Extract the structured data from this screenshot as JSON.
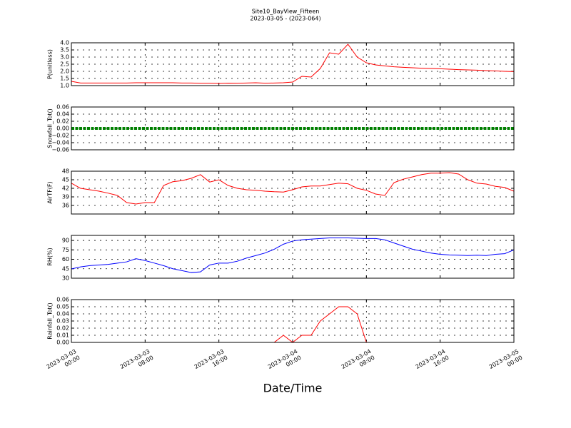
{
  "chart_data": [
    {
      "type": "line",
      "title": "Site10_BayView_Fifteen",
      "subtitle": "2023-03-05 - (2023-064)",
      "ylabel": "P(unitless)",
      "color": "#ff0000",
      "grid": true,
      "x": [
        "2023-03-03 00:00",
        "2023-03-03 01:00",
        "2023-03-03 02:00",
        "2023-03-03 03:00",
        "2023-03-03 04:00",
        "2023-03-03 05:00",
        "2023-03-03 06:00",
        "2023-03-03 07:00",
        "2023-03-03 08:00",
        "2023-03-03 09:00",
        "2023-03-03 10:00",
        "2023-03-03 11:00",
        "2023-03-03 12:00",
        "2023-03-03 13:00",
        "2023-03-03 14:00",
        "2023-03-03 15:00",
        "2023-03-03 16:00",
        "2023-03-03 17:00",
        "2023-03-03 18:00",
        "2023-03-03 19:00",
        "2023-03-03 20:00",
        "2023-03-03 21:00",
        "2023-03-03 22:00",
        "2023-03-03 23:00",
        "2023-03-04 00:00",
        "2023-03-04 01:00",
        "2023-03-04 02:00",
        "2023-03-04 03:00",
        "2023-03-04 04:00",
        "2023-03-04 05:00",
        "2023-03-04 06:00",
        "2023-03-04 07:00",
        "2023-03-04 08:00",
        "2023-03-04 09:00",
        "2023-03-04 10:00",
        "2023-03-04 11:00",
        "2023-03-04 12:00",
        "2023-03-04 13:00",
        "2023-03-04 14:00",
        "2023-03-04 15:00",
        "2023-03-04 16:00",
        "2023-03-04 17:00",
        "2023-03-04 18:00",
        "2023-03-04 19:00",
        "2023-03-04 20:00",
        "2023-03-04 21:00",
        "2023-03-04 22:00",
        "2023-03-04 23:00",
        "2023-03-05 00:00"
      ],
      "values": [
        1.3,
        1.18,
        1.18,
        1.18,
        1.18,
        1.18,
        1.18,
        1.2,
        1.2,
        1.2,
        1.2,
        1.2,
        1.18,
        1.18,
        1.16,
        1.16,
        1.15,
        1.17,
        1.16,
        1.18,
        1.2,
        1.17,
        1.18,
        1.2,
        1.25,
        1.65,
        1.6,
        2.2,
        3.3,
        3.2,
        3.9,
        3.0,
        2.6,
        2.45,
        2.38,
        2.32,
        2.28,
        2.25,
        2.22,
        2.2,
        2.18,
        2.15,
        2.12,
        2.1,
        2.08,
        2.05,
        2.03,
        2.0,
        1.98
      ],
      "xlim": [
        "2023-03-03 00:00",
        "2023-03-05 00:00"
      ],
      "xticks": [
        "2023-03-03 00:00",
        "2023-03-03 08:00",
        "2023-03-03 16:00",
        "2023-03-04 00:00",
        "2023-03-04 08:00",
        "2023-03-04 16:00",
        "2023-03-05 00:00"
      ],
      "ylim": [
        1,
        4
      ],
      "yticks": [
        {
          "value": 1,
          "label": "1.0"
        },
        {
          "value": 1.5,
          "label": "1.5"
        },
        {
          "value": 2,
          "label": "2.0"
        },
        {
          "value": 2.5,
          "label": "2.5"
        },
        {
          "value": 3,
          "label": "3.0"
        },
        {
          "value": 3.5,
          "label": "3.5"
        },
        {
          "value": 4,
          "label": "4.0"
        }
      ]
    },
    {
      "type": "line",
      "ylabel": "Snowfall_Tot()",
      "color": "#008000",
      "grid": true,
      "x": [
        "2023-03-03 00:00",
        "2023-03-03 01:00",
        "2023-03-03 02:00",
        "2023-03-03 03:00",
        "2023-03-03 04:00",
        "2023-03-03 05:00",
        "2023-03-03 06:00",
        "2023-03-03 07:00",
        "2023-03-03 08:00",
        "2023-03-03 09:00",
        "2023-03-03 10:00",
        "2023-03-03 11:00",
        "2023-03-03 12:00",
        "2023-03-03 13:00",
        "2023-03-03 14:00",
        "2023-03-03 15:00",
        "2023-03-03 16:00",
        "2023-03-03 17:00",
        "2023-03-03 18:00",
        "2023-03-03 19:00",
        "2023-03-03 20:00",
        "2023-03-03 21:00",
        "2023-03-03 22:00",
        "2023-03-03 23:00",
        "2023-03-04 00:00",
        "2023-03-04 01:00",
        "2023-03-04 02:00",
        "2023-03-04 03:00",
        "2023-03-04 04:00",
        "2023-03-04 05:00",
        "2023-03-04 06:00",
        "2023-03-04 07:00",
        "2023-03-04 08:00",
        "2023-03-04 09:00",
        "2023-03-04 10:00",
        "2023-03-04 11:00",
        "2023-03-04 12:00",
        "2023-03-04 13:00",
        "2023-03-04 14:00",
        "2023-03-04 15:00",
        "2023-03-04 16:00",
        "2023-03-04 17:00",
        "2023-03-04 18:00",
        "2023-03-04 19:00",
        "2023-03-04 20:00",
        "2023-03-04 21:00",
        "2023-03-04 22:00",
        "2023-03-04 23:00",
        "2023-03-05 00:00"
      ],
      "values": [
        0,
        0,
        0,
        0,
        0,
        0,
        0,
        0,
        0,
        0,
        0,
        0,
        0,
        0,
        0,
        0,
        0,
        0,
        0,
        0,
        0,
        0,
        0,
        0,
        0,
        0,
        0,
        0,
        0,
        0,
        0,
        0,
        0,
        0,
        0,
        0,
        0,
        0,
        0,
        0,
        0,
        0,
        0,
        0,
        0,
        0,
        0,
        0,
        0
      ],
      "xlim": [
        "2023-03-03 00:00",
        "2023-03-05 00:00"
      ],
      "xticks": [
        "2023-03-03 00:00",
        "2023-03-03 08:00",
        "2023-03-03 16:00",
        "2023-03-04 00:00",
        "2023-03-04 08:00",
        "2023-03-04 16:00",
        "2023-03-05 00:00"
      ],
      "ylim": [
        -0.06,
        0.06
      ],
      "yticks": [
        {
          "value": -0.06,
          "label": "−0.06"
        },
        {
          "value": -0.04,
          "label": "−0.04"
        },
        {
          "value": -0.02,
          "label": "−0.02"
        },
        {
          "value": 0,
          "label": "0.00"
        },
        {
          "value": 0.02,
          "label": "0.02"
        },
        {
          "value": 0.04,
          "label": "0.04"
        },
        {
          "value": 0.06,
          "label": "0.06"
        }
      ]
    },
    {
      "type": "line",
      "ylabel": "AirTF(F)",
      "color": "#ff0000",
      "grid": true,
      "x": [
        "2023-03-03 00:00",
        "2023-03-03 01:00",
        "2023-03-03 02:00",
        "2023-03-03 03:00",
        "2023-03-03 04:00",
        "2023-03-03 05:00",
        "2023-03-03 06:00",
        "2023-03-03 07:00",
        "2023-03-03 08:00",
        "2023-03-03 09:00",
        "2023-03-03 10:00",
        "2023-03-03 11:00",
        "2023-03-03 12:00",
        "2023-03-03 13:00",
        "2023-03-03 14:00",
        "2023-03-03 15:00",
        "2023-03-03 16:00",
        "2023-03-03 17:00",
        "2023-03-03 18:00",
        "2023-03-03 19:00",
        "2023-03-03 20:00",
        "2023-03-03 21:00",
        "2023-03-03 22:00",
        "2023-03-03 23:00",
        "2023-03-04 00:00",
        "2023-03-04 01:00",
        "2023-03-04 02:00",
        "2023-03-04 03:00",
        "2023-03-04 04:00",
        "2023-03-04 05:00",
        "2023-03-04 06:00",
        "2023-03-04 07:00",
        "2023-03-04 08:00",
        "2023-03-04 09:00",
        "2023-03-04 10:00",
        "2023-03-04 11:00",
        "2023-03-04 12:00",
        "2023-03-04 13:00",
        "2023-03-04 14:00",
        "2023-03-04 15:00",
        "2023-03-04 16:00",
        "2023-03-04 17:00",
        "2023-03-04 18:00",
        "2023-03-04 19:00",
        "2023-03-04 20:00",
        "2023-03-04 21:00",
        "2023-03-04 22:00",
        "2023-03-04 23:00",
        "2023-03-05 00:00"
      ],
      "values": [
        43.8,
        42,
        41.5,
        41,
        40.3,
        39.5,
        37,
        36.5,
        37,
        37,
        43,
        44.3,
        44.7,
        45.5,
        46.8,
        44.2,
        45,
        43,
        42,
        41.5,
        41.3,
        41,
        40.8,
        40.7,
        41.5,
        42.5,
        42.8,
        42.8,
        43.3,
        43.8,
        43.6,
        42,
        41.3,
        40,
        39.5,
        44,
        45.2,
        46,
        46.8,
        47.3,
        47.3,
        47.5,
        47,
        45,
        43.8,
        43.5,
        42.7,
        42.3,
        41
      ],
      "xlim": [
        "2023-03-03 00:00",
        "2023-03-05 00:00"
      ],
      "xticks": [
        "2023-03-03 00:00",
        "2023-03-03 08:00",
        "2023-03-03 16:00",
        "2023-03-04 00:00",
        "2023-03-04 08:00",
        "2023-03-04 16:00",
        "2023-03-05 00:00"
      ],
      "ylim": [
        33,
        48
      ],
      "yticks": [
        36,
        39,
        42,
        45,
        48
      ]
    },
    {
      "type": "line",
      "ylabel": "RH(%)",
      "color": "#0000ff",
      "grid": true,
      "x": [
        "2023-03-03 00:00",
        "2023-03-03 01:00",
        "2023-03-03 02:00",
        "2023-03-03 03:00",
        "2023-03-03 04:00",
        "2023-03-03 05:00",
        "2023-03-03 06:00",
        "2023-03-03 07:00",
        "2023-03-03 08:00",
        "2023-03-03 09:00",
        "2023-03-03 10:00",
        "2023-03-03 11:00",
        "2023-03-03 12:00",
        "2023-03-03 13:00",
        "2023-03-03 14:00",
        "2023-03-03 15:00",
        "2023-03-03 16:00",
        "2023-03-03 17:00",
        "2023-03-03 18:00",
        "2023-03-03 19:00",
        "2023-03-03 20:00",
        "2023-03-03 21:00",
        "2023-03-03 22:00",
        "2023-03-03 23:00",
        "2023-03-04 00:00",
        "2023-03-04 01:00",
        "2023-03-04 02:00",
        "2023-03-04 03:00",
        "2023-03-04 04:00",
        "2023-03-04 05:00",
        "2023-03-04 06:00",
        "2023-03-04 07:00",
        "2023-03-04 08:00",
        "2023-03-04 09:00",
        "2023-03-04 10:00",
        "2023-03-04 11:00",
        "2023-03-04 12:00",
        "2023-03-04 13:00",
        "2023-03-04 14:00",
        "2023-03-04 15:00",
        "2023-03-04 16:00",
        "2023-03-04 17:00",
        "2023-03-04 18:00",
        "2023-03-04 19:00",
        "2023-03-04 20:00",
        "2023-03-04 21:00",
        "2023-03-04 22:00",
        "2023-03-04 23:00",
        "2023-03-05 00:00"
      ],
      "values": [
        44.7,
        48,
        50,
        51,
        52,
        54,
        56,
        61,
        58,
        54,
        50,
        45,
        42,
        39,
        40,
        51,
        54,
        54,
        57,
        62,
        66,
        70,
        76,
        84,
        89,
        91,
        92,
        93,
        94,
        94,
        94,
        93.5,
        93,
        93,
        91,
        86,
        81,
        76,
        73,
        70,
        68,
        67,
        66.5,
        66,
        66.5,
        66,
        68,
        69,
        75
      ],
      "xlim": [
        "2023-03-03 00:00",
        "2023-03-05 00:00"
      ],
      "xticks": [
        "2023-03-03 00:00",
        "2023-03-03 08:00",
        "2023-03-03 16:00",
        "2023-03-04 00:00",
        "2023-03-04 08:00",
        "2023-03-04 16:00",
        "2023-03-05 00:00"
      ],
      "ylim": [
        30,
        98
      ],
      "yticks": [
        30,
        45,
        60,
        75,
        90
      ]
    },
    {
      "type": "line",
      "ylabel": "Rainfall_Tot()",
      "xlabel": "Date/Time",
      "color": "#ff0000",
      "grid": true,
      "x": [
        "2023-03-03 00:00",
        "2023-03-03 01:00",
        "2023-03-03 02:00",
        "2023-03-03 03:00",
        "2023-03-03 04:00",
        "2023-03-03 05:00",
        "2023-03-03 06:00",
        "2023-03-03 07:00",
        "2023-03-03 08:00",
        "2023-03-03 09:00",
        "2023-03-03 10:00",
        "2023-03-03 11:00",
        "2023-03-03 12:00",
        "2023-03-03 13:00",
        "2023-03-03 14:00",
        "2023-03-03 15:00",
        "2023-03-03 16:00",
        "2023-03-03 17:00",
        "2023-03-03 18:00",
        "2023-03-03 19:00",
        "2023-03-03 20:00",
        "2023-03-03 21:00",
        "2023-03-03 22:00",
        "2023-03-03 23:00",
        "2023-03-04 00:00",
        "2023-03-04 01:00",
        "2023-03-04 02:00",
        "2023-03-04 03:00",
        "2023-03-04 04:00",
        "2023-03-04 05:00",
        "2023-03-04 06:00",
        "2023-03-04 07:00",
        "2023-03-04 08:00",
        "2023-03-04 09:00",
        "2023-03-04 10:00",
        "2023-03-04 11:00",
        "2023-03-04 12:00",
        "2023-03-04 13:00",
        "2023-03-04 14:00",
        "2023-03-04 15:00",
        "2023-03-04 16:00",
        "2023-03-04 17:00",
        "2023-03-04 18:00",
        "2023-03-04 19:00",
        "2023-03-04 20:00",
        "2023-03-04 21:00",
        "2023-03-04 22:00",
        "2023-03-04 23:00",
        "2023-03-05 00:00"
      ],
      "values": [
        0,
        0,
        0,
        0,
        0,
        0,
        0,
        0,
        0,
        0,
        0,
        0,
        0,
        0,
        0,
        0,
        0,
        0,
        0,
        0,
        0,
        0,
        0,
        0.01,
        0,
        0.01,
        0.01,
        0.03,
        0.04,
        0.05,
        0.05,
        0.04,
        0,
        0,
        0,
        0,
        0,
        0,
        0,
        0,
        0,
        0,
        0,
        0,
        0,
        0,
        0,
        0,
        0
      ],
      "xlim": [
        "2023-03-03 00:00",
        "2023-03-05 00:00"
      ],
      "xticks": [
        "2023-03-03 00:00",
        "2023-03-03 08:00",
        "2023-03-03 16:00",
        "2023-03-04 00:00",
        "2023-03-04 08:00",
        "2023-03-04 16:00",
        "2023-03-05 00:00"
      ],
      "ylim": [
        0,
        0.06
      ],
      "yticks": [
        {
          "value": 0,
          "label": "0.00"
        },
        {
          "value": 0.01,
          "label": "0.01"
        },
        {
          "value": 0.02,
          "label": "0.02"
        },
        {
          "value": 0.03,
          "label": "0.03"
        },
        {
          "value": 0.04,
          "label": "0.04"
        },
        {
          "value": 0.05,
          "label": "0.05"
        },
        {
          "value": 0.06,
          "label": "0.06"
        }
      ]
    }
  ]
}
